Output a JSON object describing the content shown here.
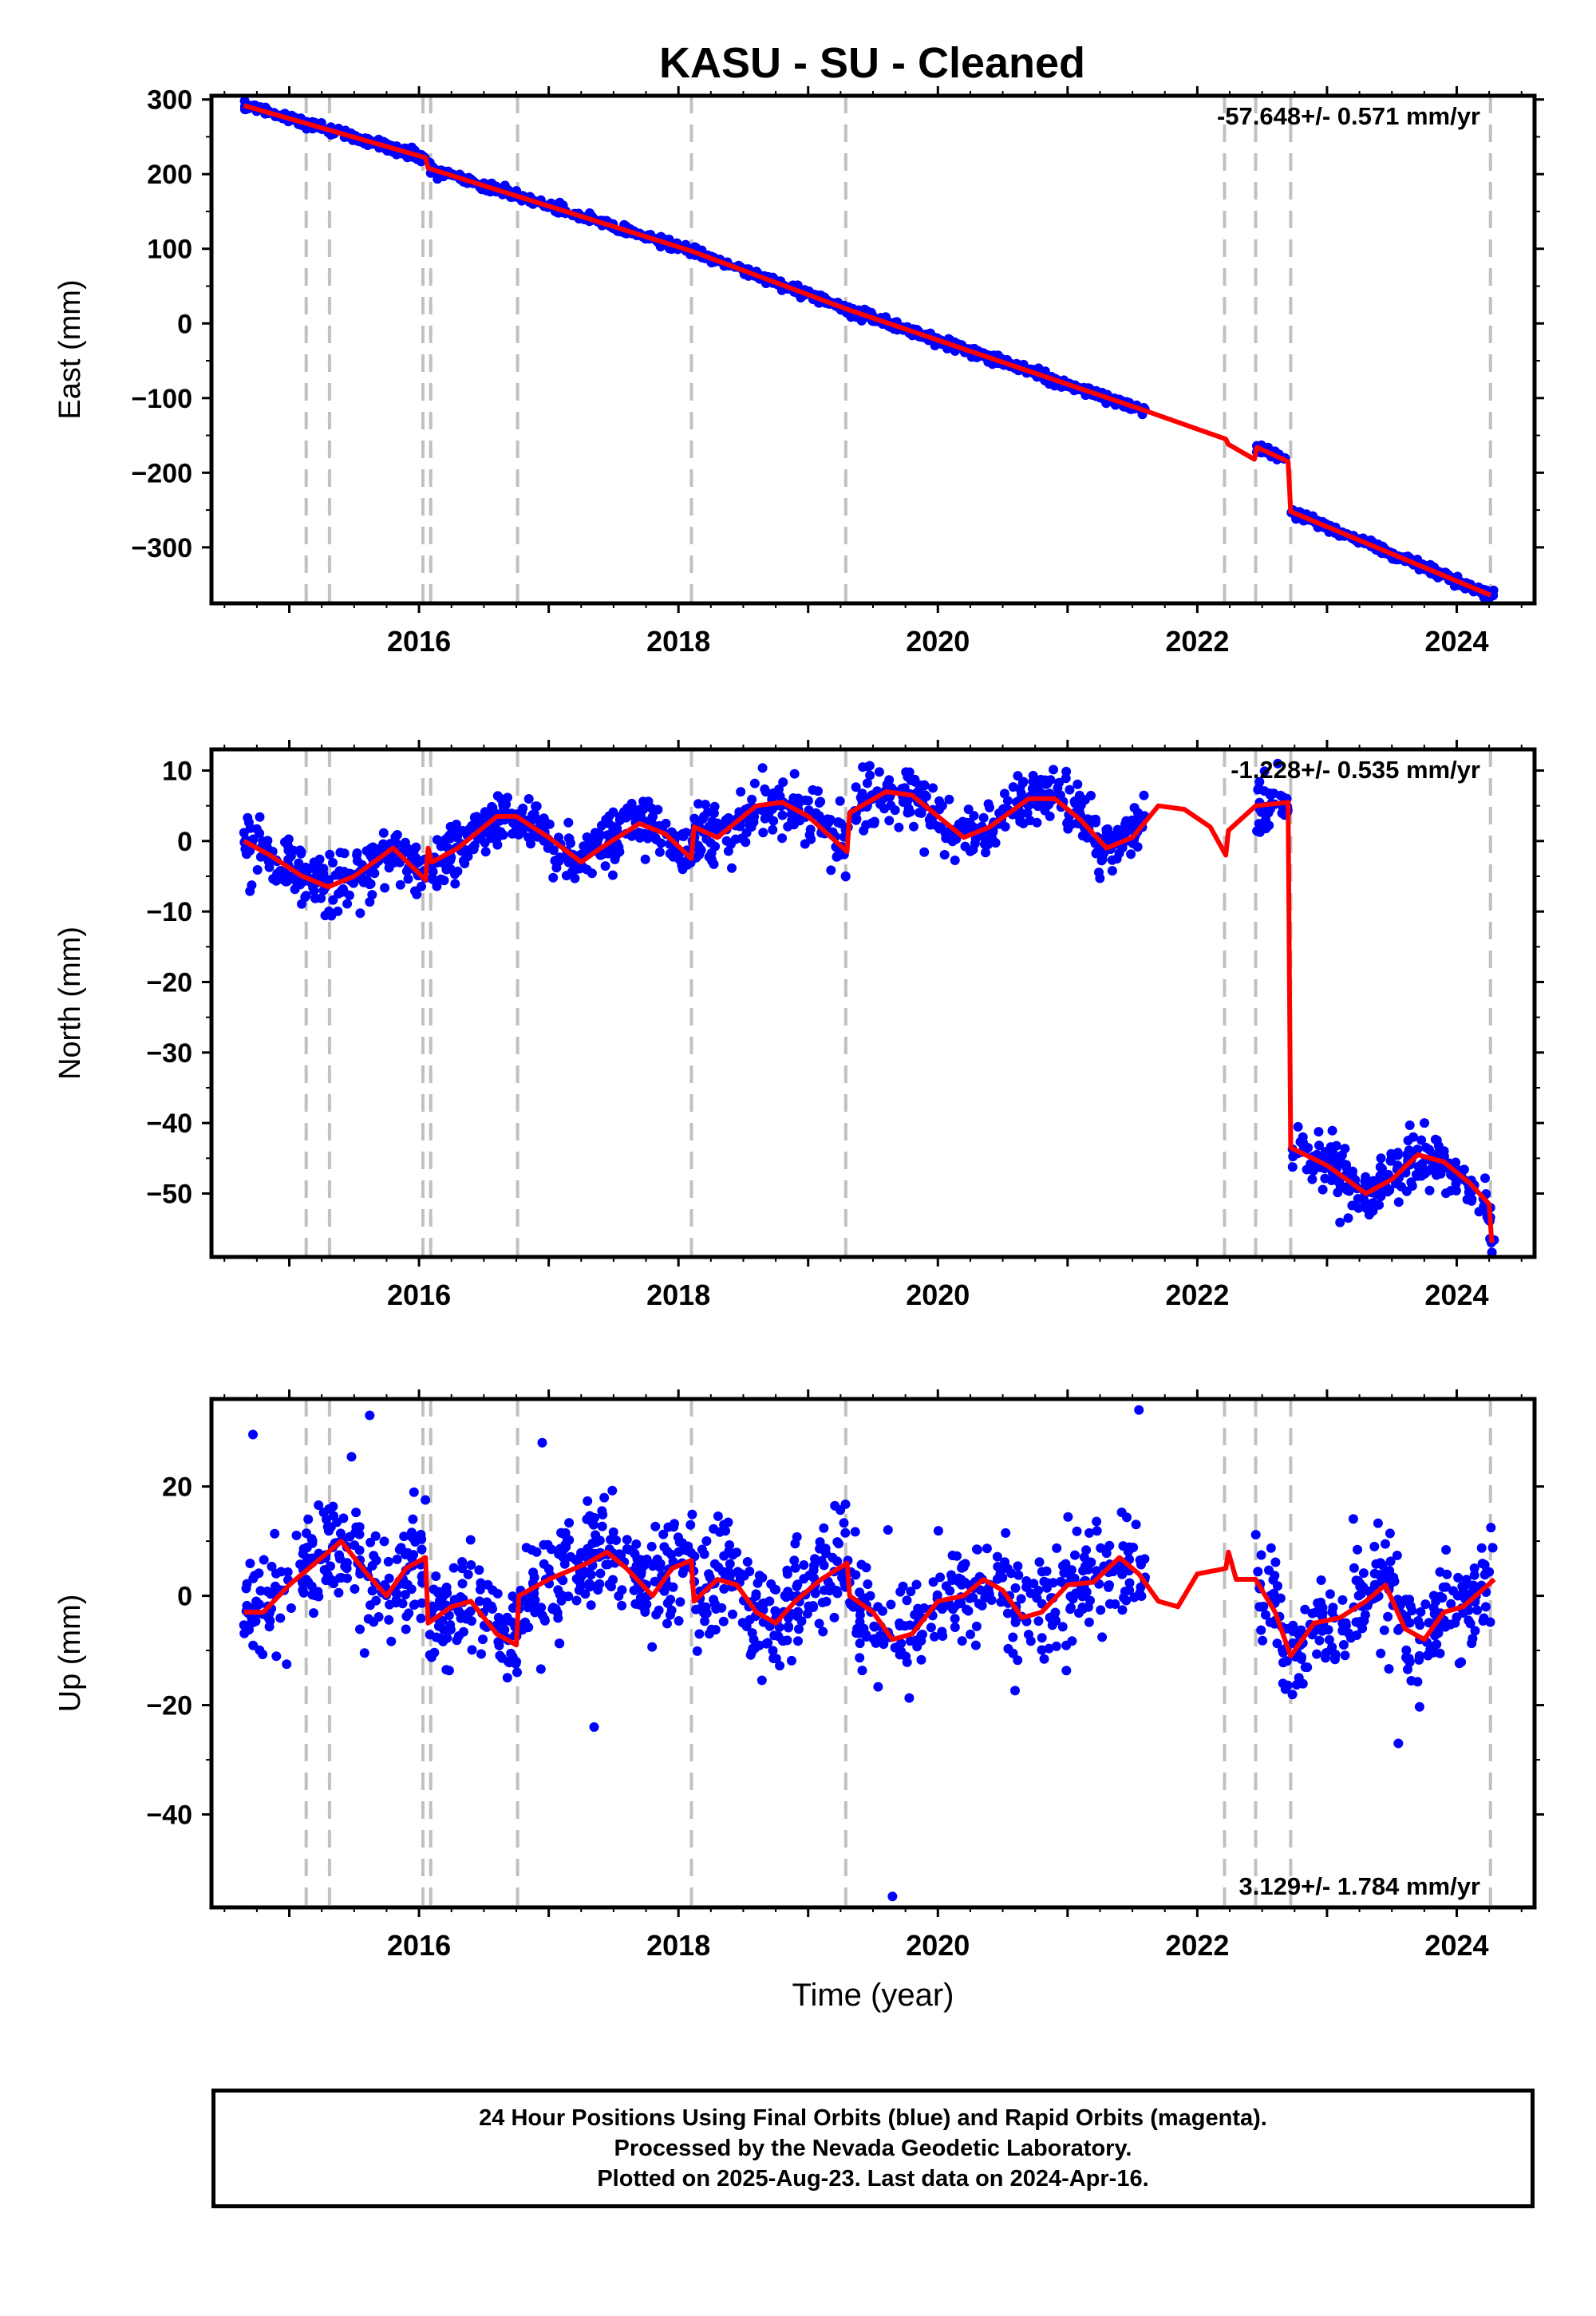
{
  "chart_data": [
    {
      "type": "scatter",
      "title": "KASU  - SU - Cleaned",
      "component": "East",
      "ylabel": "East (mm)",
      "xlabel": "",
      "ylim": [
        -375,
        305
      ],
      "xlim": [
        2014.4,
        2024.6
      ],
      "yticks": [
        300,
        200,
        100,
        0,
        -100,
        -200,
        -300
      ],
      "xticks": [
        2016,
        2018,
        2020,
        2022,
        2024
      ],
      "rate": "-57.648+/- 0.571 mm/yr",
      "rate_position": "top-right",
      "grid": false,
      "point_color": "#0000ff",
      "model_color": "#ff0000",
      "data_color_note": "blue",
      "model_points": [
        [
          2014.65,
          292
        ],
        [
          2016.05,
          222
        ],
        [
          2016.07,
          208
        ],
        [
          2018.1,
          97
        ],
        [
          2019.3,
          19
        ],
        [
          2021.6,
          -117
        ],
        [
          2022.22,
          -155
        ],
        [
          2022.24,
          -162
        ],
        [
          2022.44,
          -182
        ],
        [
          2022.46,
          -166
        ],
        [
          2022.7,
          -185
        ],
        [
          2022.72,
          -252
        ],
        [
          2024.26,
          -364
        ]
      ],
      "data_segments": [
        [
          2014.65,
          2016.05
        ],
        [
          2016.08,
          2021.6
        ],
        [
          2022.45,
          2022.7
        ],
        [
          2022.72,
          2024.29
        ]
      ],
      "noise_mm": 3
    },
    {
      "type": "scatter",
      "component": "North",
      "ylabel": "North (mm)",
      "xlabel": "",
      "ylim": [
        -59,
        13
      ],
      "xlim": [
        2014.4,
        2024.6
      ],
      "yticks": [
        10,
        0,
        -10,
        -20,
        -30,
        -40,
        -50
      ],
      "xticks": [
        2016,
        2018,
        2020,
        2022,
        2024
      ],
      "rate": "-1.228+/- 0.535 mm/yr",
      "rate_position": "top-right",
      "grid": false,
      "point_color": "#0000ff",
      "model_color": "#ff0000",
      "model_points": [
        [
          2014.65,
          0
        ],
        [
          2014.85,
          -2
        ],
        [
          2015.1,
          -5
        ],
        [
          2015.3,
          -6.5
        ],
        [
          2015.5,
          -5
        ],
        [
          2015.8,
          -1
        ],
        [
          2016.05,
          -5.5
        ],
        [
          2016.07,
          -1
        ],
        [
          2016.1,
          -3
        ],
        [
          2016.3,
          -1
        ],
        [
          2016.6,
          3.5
        ],
        [
          2016.75,
          3.5
        ],
        [
          2017.0,
          0.5
        ],
        [
          2017.25,
          -3
        ],
        [
          2017.4,
          -1
        ],
        [
          2017.7,
          2.5
        ],
        [
          2017.9,
          1
        ],
        [
          2018.1,
          -2.5
        ],
        [
          2018.12,
          2
        ],
        [
          2018.3,
          0.5
        ],
        [
          2018.6,
          5
        ],
        [
          2018.8,
          5.5
        ],
        [
          2019.0,
          3.5
        ],
        [
          2019.3,
          -1.5
        ],
        [
          2019.32,
          4
        ],
        [
          2019.6,
          7
        ],
        [
          2019.8,
          6.5
        ],
        [
          2020.0,
          3.5
        ],
        [
          2020.2,
          0.5
        ],
        [
          2020.4,
          2
        ],
        [
          2020.7,
          6
        ],
        [
          2020.9,
          6
        ],
        [
          2021.1,
          3
        ],
        [
          2021.3,
          -1
        ],
        [
          2021.5,
          0.5
        ],
        [
          2021.7,
          5
        ],
        [
          2021.9,
          4.5
        ],
        [
          2022.1,
          2
        ],
        [
          2022.22,
          -2
        ],
        [
          2022.24,
          1.5
        ],
        [
          2022.45,
          5
        ],
        [
          2022.7,
          5.5
        ],
        [
          2022.72,
          -43.5
        ],
        [
          2023.0,
          -46
        ],
        [
          2023.3,
          -50
        ],
        [
          2023.5,
          -48
        ],
        [
          2023.7,
          -44.5
        ],
        [
          2023.9,
          -45.5
        ],
        [
          2024.1,
          -48.5
        ],
        [
          2024.25,
          -51.5
        ],
        [
          2024.27,
          -57
        ]
      ],
      "data_segments": [
        [
          2014.65,
          2016.05
        ],
        [
          2016.08,
          2021.6
        ],
        [
          2022.45,
          2022.7
        ],
        [
          2022.73,
          2024.29
        ]
      ],
      "noise_mm": 2
    },
    {
      "type": "scatter",
      "component": "Up",
      "ylabel": "Up (mm)",
      "xlabel": "Time (year)",
      "ylim": [
        -57,
        36
      ],
      "xlim": [
        2014.4,
        2024.6
      ],
      "yticks": [
        20,
        0,
        -20,
        -40
      ],
      "xticks": [
        2016,
        2018,
        2020,
        2022,
        2024
      ],
      "rate": "3.129+/- 1.784 mm/yr",
      "rate_position": "bottom-right",
      "grid": false,
      "point_color": "#0000ff",
      "model_color": "#ff0000",
      "model_points": [
        [
          2014.65,
          -3
        ],
        [
          2014.8,
          -3
        ],
        [
          2015.0,
          2
        ],
        [
          2015.1,
          4
        ],
        [
          2015.3,
          8
        ],
        [
          2015.4,
          10
        ],
        [
          2015.6,
          4
        ],
        [
          2015.75,
          0
        ],
        [
          2015.9,
          5
        ],
        [
          2016.05,
          7
        ],
        [
          2016.07,
          -5
        ],
        [
          2016.25,
          -2
        ],
        [
          2016.4,
          -1
        ],
        [
          2016.6,
          -7
        ],
        [
          2016.75,
          -9
        ],
        [
          2016.77,
          0
        ],
        [
          2017.0,
          3
        ],
        [
          2017.3,
          6
        ],
        [
          2017.45,
          8
        ],
        [
          2017.6,
          5
        ],
        [
          2017.8,
          0
        ],
        [
          2017.95,
          5
        ],
        [
          2018.1,
          6.5
        ],
        [
          2018.12,
          -1
        ],
        [
          2018.3,
          3
        ],
        [
          2018.45,
          2
        ],
        [
          2018.6,
          -3
        ],
        [
          2018.75,
          -5
        ],
        [
          2018.9,
          -1
        ],
        [
          2019.1,
          3
        ],
        [
          2019.3,
          6
        ],
        [
          2019.32,
          0
        ],
        [
          2019.5,
          -3
        ],
        [
          2019.65,
          -8
        ],
        [
          2019.8,
          -7
        ],
        [
          2020.0,
          -1
        ],
        [
          2020.2,
          0
        ],
        [
          2020.35,
          3
        ],
        [
          2020.5,
          1
        ],
        [
          2020.65,
          -4
        ],
        [
          2020.8,
          -3
        ],
        [
          2021.0,
          2
        ],
        [
          2021.2,
          2.5
        ],
        [
          2021.4,
          7
        ],
        [
          2021.55,
          4
        ],
        [
          2021.7,
          -1
        ],
        [
          2021.85,
          -2
        ],
        [
          2022.0,
          4
        ],
        [
          2022.22,
          5
        ],
        [
          2022.24,
          8
        ],
        [
          2022.3,
          3
        ],
        [
          2022.45,
          3
        ],
        [
          2022.6,
          -3
        ],
        [
          2022.72,
          -11
        ],
        [
          2022.9,
          -5
        ],
        [
          2023.1,
          -4
        ],
        [
          2023.3,
          -1
        ],
        [
          2023.45,
          2
        ],
        [
          2023.6,
          -6
        ],
        [
          2023.75,
          -8
        ],
        [
          2023.9,
          -3
        ],
        [
          2024.05,
          -2
        ],
        [
          2024.29,
          3
        ]
      ],
      "data_segments": [
        [
          2014.65,
          2016.05
        ],
        [
          2016.08,
          2021.6
        ],
        [
          2022.45,
          2022.7
        ],
        [
          2022.72,
          2024.29
        ]
      ],
      "noise_mm": 5,
      "outliers": [
        [
          2014.72,
          29.5
        ],
        [
          2015.62,
          33
        ],
        [
          2016.95,
          28
        ],
        [
          2017.35,
          -24
        ],
        [
          2019.65,
          -55
        ],
        [
          2021.55,
          34
        ],
        [
          2023.55,
          -27
        ]
      ]
    }
  ],
  "event_lines": [
    2015.13,
    2015.31,
    2016.03,
    2016.09,
    2016.76,
    2018.1,
    2019.29,
    2022.21,
    2022.45,
    2022.72,
    2024.26
  ],
  "footer": {
    "line1": "24 Hour Positions Using Final Orbits (blue) and Rapid Orbits (magenta).",
    "line2": "Processed by the Nevada Geodetic Laboratory.",
    "line3": "Plotted on 2025-Aug-23. Last data on 2024-Apr-16."
  }
}
